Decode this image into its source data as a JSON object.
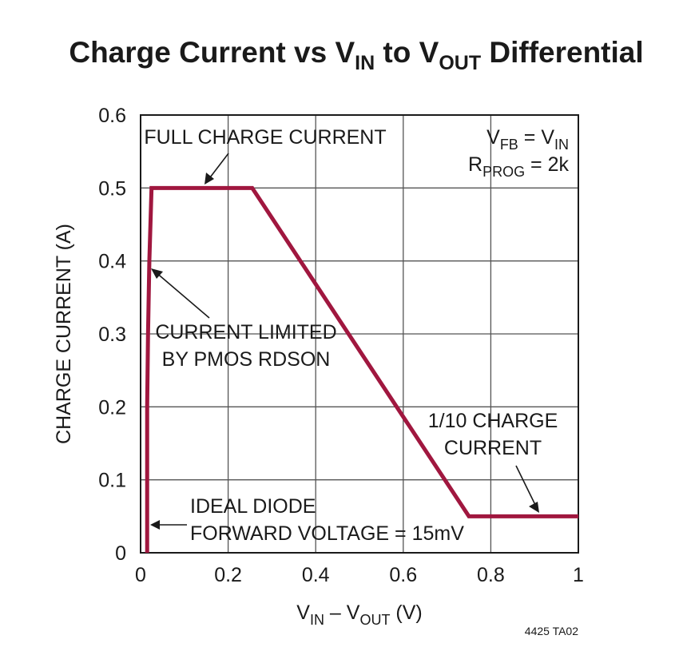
{
  "chart_data": {
    "type": "line",
    "title": {
      "main": "Charge Current vs V",
      "sub1": "IN",
      "mid": " to V",
      "sub2": "OUT",
      "end": " Differential"
    },
    "xlabel": {
      "v1": "V",
      "sub1": "IN",
      "mid": " – V",
      "sub2": "OUT",
      "end": " (V)"
    },
    "ylabel": "CHARGE CURRENT (A)",
    "xlim": [
      0,
      1
    ],
    "ylim": [
      0,
      0.6
    ],
    "xticks": [
      0,
      0.2,
      0.4,
      0.6,
      0.8,
      1
    ],
    "xtick_labels": [
      "0",
      "0.2",
      "0.4",
      "0.6",
      "0.8",
      "1"
    ],
    "yticks": [
      0,
      0.1,
      0.2,
      0.3,
      0.4,
      0.5,
      0.6
    ],
    "ytick_labels": [
      "0",
      "0.1",
      "0.2",
      "0.3",
      "0.4",
      "0.5",
      "0.6"
    ],
    "grid": true,
    "series": [
      {
        "color": "#a0173f",
        "x": [
          0.015,
          0.015,
          0.017,
          0.02,
          0.025,
          0.255,
          0.75,
          1.0
        ],
        "y": [
          0,
          0.2,
          0.3,
          0.4,
          0.5,
          0.5,
          0.05,
          0.05
        ]
      }
    ],
    "annotations": {
      "full_charge": "FULL CHARGE CURRENT",
      "current_limited_1": "CURRENT LIMITED",
      "current_limited_2": "BY PMOS RDSON",
      "tenth_1": "1/10 CHARGE",
      "tenth_2": "CURRENT",
      "ideal_1": "IDEAL DIODE",
      "ideal_2": "FORWARD VOLTAGE = 15mV",
      "cond1": {
        "v": "V",
        "sub1": "FB",
        "mid": " = V",
        "sub2": "IN"
      },
      "cond2": {
        "v": "R",
        "sub1": "PROG",
        "end": " = 2k"
      }
    },
    "figure_number": "4425 TA02"
  }
}
